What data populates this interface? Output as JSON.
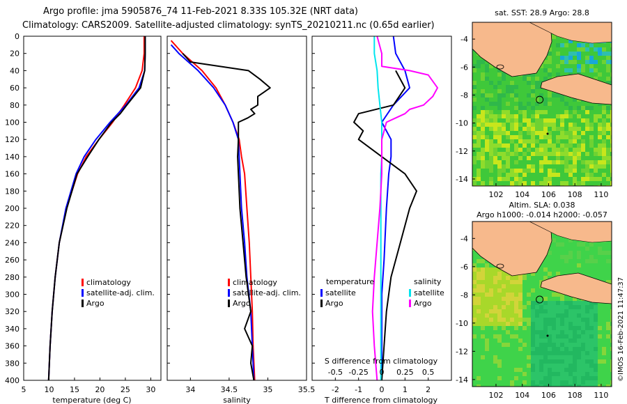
{
  "header": {
    "line1": "Argo profile: jma 5905876_74 11-Feb-2021 8.33S 105.32E (NRT data)",
    "line2": "Climatology: CARS2009. Satellite-adjusted climatology: synTS_20210211.nc (0.65d earlier)"
  },
  "footer_credit": "©IMOS 16-Feb-2021 11:47:37",
  "colors": {
    "climatology": "#ff0000",
    "satellite": "#0000ff",
    "argo": "#000000",
    "sat_salinity": "#00e5ee",
    "argo_salinity_diff": "#ff00ff"
  },
  "chart_data": [
    {
      "id": "temperature",
      "type": "line",
      "xlabel": "temperature (deg C)",
      "xlim": [
        5,
        32
      ],
      "xticks": [
        5,
        10,
        15,
        20,
        25,
        30
      ],
      "ylim": [
        400,
        0
      ],
      "yticks": [
        0,
        20,
        40,
        60,
        80,
        100,
        120,
        140,
        160,
        180,
        200,
        220,
        240,
        260,
        280,
        300,
        320,
        340,
        360,
        380,
        400
      ],
      "legend": [
        "climatology",
        "satellite-adj. clim.",
        "Argo"
      ],
      "series": [
        {
          "name": "climatology",
          "color": "#ff0000",
          "depth": [
            0,
            20,
            40,
            60,
            80,
            100,
            120,
            140,
            160,
            180,
            200,
            240,
            280,
            320,
            360,
            400
          ],
          "values": [
            28.7,
            28.7,
            28.3,
            27.0,
            24.8,
            22.5,
            19.8,
            17.3,
            15.6,
            14.5,
            13.4,
            12.0,
            11.2,
            10.6,
            10.2,
            9.9
          ]
        },
        {
          "name": "satellite-adj. clim.",
          "color": "#0000ff",
          "depth": [
            0,
            20,
            40,
            60,
            80,
            100,
            120,
            140,
            160,
            180,
            200,
            240,
            280,
            320,
            360,
            400
          ],
          "values": [
            28.9,
            28.9,
            28.8,
            27.7,
            25.1,
            22.0,
            19.2,
            16.9,
            15.3,
            14.3,
            13.3,
            12.0,
            11.2,
            10.6,
            10.2,
            9.9
          ]
        },
        {
          "name": "Argo",
          "color": "#000000",
          "depth": [
            0,
            20,
            40,
            60,
            80,
            90,
            100,
            120,
            140,
            160,
            180,
            200,
            240,
            280,
            320,
            360,
            400
          ],
          "values": [
            28.9,
            28.9,
            28.8,
            28.0,
            25.3,
            24.0,
            22.3,
            19.8,
            17.6,
            15.5,
            14.5,
            13.5,
            12.0,
            11.2,
            10.6,
            10.2,
            9.9
          ]
        }
      ]
    },
    {
      "id": "salinity",
      "type": "line",
      "xlabel": "salinity",
      "xlim": [
        33.7,
        35.5
      ],
      "xticks": [
        34,
        34.5,
        35,
        35.5
      ],
      "ylim": [
        400,
        0
      ],
      "legend": [
        "climatology",
        "satellite-adj. clim.",
        "Argo"
      ],
      "series": [
        {
          "name": "climatology",
          "color": "#ff0000",
          "depth": [
            5,
            20,
            40,
            60,
            80,
            100,
            120,
            140,
            160,
            200,
            240,
            280,
            320,
            360,
            400
          ],
          "values": [
            33.75,
            33.9,
            34.15,
            34.33,
            34.45,
            34.55,
            34.63,
            34.66,
            34.7,
            34.73,
            34.76,
            34.78,
            34.8,
            34.81,
            34.83
          ]
        },
        {
          "name": "satellite-adj. clim.",
          "color": "#0000ff",
          "depth": [
            10,
            20,
            40,
            60,
            80,
            100,
            120,
            140,
            160,
            200,
            240,
            280,
            320,
            360,
            400
          ],
          "values": [
            33.75,
            33.85,
            34.1,
            34.3,
            34.45,
            34.55,
            34.62,
            34.63,
            34.64,
            34.66,
            34.7,
            34.73,
            34.78,
            34.8,
            34.82
          ]
        },
        {
          "name": "Argo",
          "color": "#000000",
          "depth": [
            20,
            30,
            40,
            50,
            60,
            65,
            70,
            80,
            85,
            90,
            95,
            100,
            120,
            140,
            160,
            200,
            240,
            280,
            320,
            340,
            360,
            380,
            400
          ],
          "values": [
            33.9,
            34.0,
            34.75,
            34.9,
            35.03,
            34.95,
            34.87,
            34.87,
            34.78,
            34.83,
            34.74,
            34.62,
            34.62,
            34.61,
            34.62,
            34.64,
            34.68,
            34.72,
            34.78,
            34.7,
            34.8,
            34.78,
            34.82
          ]
        }
      ]
    },
    {
      "id": "difference",
      "type": "line",
      "xlabel": "T difference from climatology",
      "top_label": "S difference from climatology",
      "xlim": [
        -3,
        3
      ],
      "xticks": [
        -2,
        -1,
        0,
        1,
        2
      ],
      "sticks_labels": [
        "-0.5",
        "-0.25",
        "0",
        "0.25",
        "0.5"
      ],
      "ylim": [
        400,
        0
      ],
      "legend_temperature_title": "temperature",
      "legend_salinity_title": "salinity",
      "legend": [
        "satellite",
        "Argo",
        "satellite",
        "Argo"
      ],
      "series": [
        {
          "name": "temperature satellite",
          "color": "#0000ff",
          "depth": [
            0,
            20,
            40,
            60,
            80,
            100,
            120,
            140,
            160,
            200,
            260,
            300,
            350,
            400
          ],
          "values": [
            0.5,
            0.6,
            1.0,
            1.2,
            0.5,
            0.0,
            0.4,
            0.4,
            0.3,
            0.2,
            0.1,
            0.0,
            0.0,
            0.0
          ]
        },
        {
          "name": "temperature Argo",
          "color": "#000000",
          "depth": [
            40,
            60,
            80,
            90,
            100,
            110,
            120,
            140,
            160,
            180,
            200,
            240,
            280,
            320,
            360,
            400
          ],
          "values": [
            0.6,
            1.0,
            0.5,
            -1.0,
            -1.2,
            -0.8,
            -1.0,
            0.0,
            1.0,
            1.5,
            1.2,
            0.8,
            0.4,
            0.2,
            0.1,
            0.0
          ]
        },
        {
          "name": "salinity satellite",
          "color": "#00e5ee",
          "depth": [
            0,
            20,
            40,
            60,
            80,
            100,
            120,
            140,
            160,
            200,
            240,
            280,
            320,
            360,
            400
          ],
          "values": [
            -0.08,
            -0.08,
            -0.05,
            -0.04,
            -0.02,
            0.0,
            0.0,
            0.0,
            -0.01,
            -0.01,
            -0.01,
            -0.01,
            -0.01,
            -0.01,
            -0.01
          ]
        },
        {
          "name": "salinity Argo",
          "color": "#ff00ff",
          "depth": [
            0,
            20,
            35,
            40,
            45,
            60,
            70,
            80,
            85,
            90,
            95,
            100,
            120,
            140,
            160,
            200,
            240,
            280,
            320,
            360,
            400
          ],
          "values": [
            -0.05,
            0.0,
            0.0,
            0.3,
            0.5,
            0.6,
            0.55,
            0.45,
            0.3,
            0.25,
            0.15,
            0.05,
            0.0,
            0.0,
            0.0,
            -0.02,
            -0.05,
            -0.08,
            -0.1,
            -0.08,
            -0.05
          ]
        }
      ]
    },
    {
      "id": "map-sst",
      "type": "heatmap",
      "title": "sat. SST: 28.9 Argo: 28.8",
      "xlim": [
        100.2,
        110.8
      ],
      "ylim": [
        -14.5,
        -2.8
      ],
      "xticks": [
        102,
        104,
        106,
        108,
        110
      ],
      "yticks": [
        -4,
        -6,
        -8,
        -10,
        -12,
        -14
      ],
      "argo_position": [
        105.32,
        -8.33
      ]
    },
    {
      "id": "map-sla",
      "type": "heatmap",
      "title1": "Altim. SLA: 0.038",
      "title2": "Argo h1000: -0.014 h2000: -0.057",
      "xlim": [
        100.2,
        110.8
      ],
      "ylim": [
        -14.5,
        -2.8
      ],
      "xticks": [
        102,
        104,
        106,
        108,
        110
      ],
      "yticks": [
        -4,
        -6,
        -8,
        -10,
        -12,
        -14
      ],
      "argo_position": [
        105.32,
        -8.33
      ]
    }
  ]
}
